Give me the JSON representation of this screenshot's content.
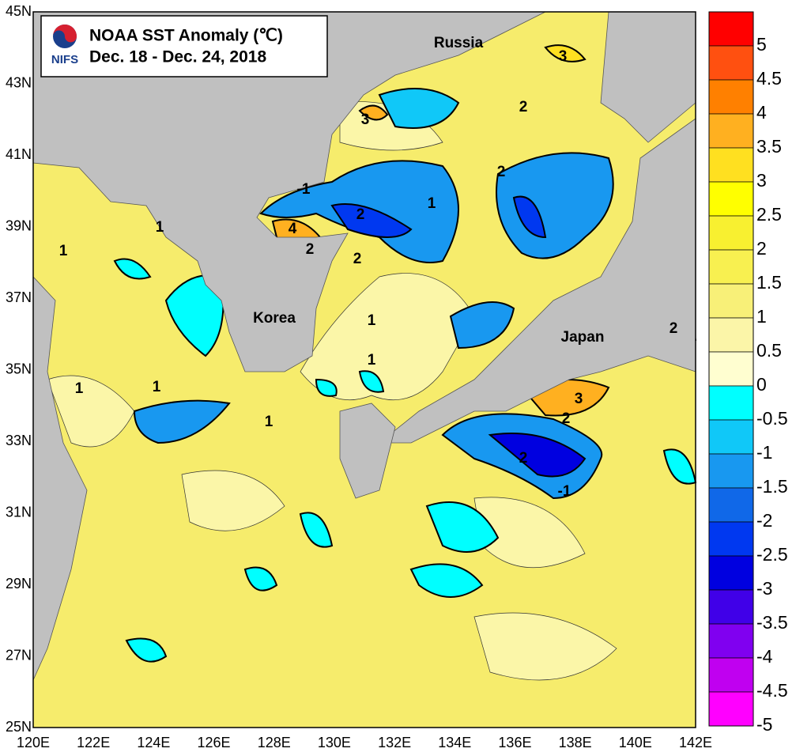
{
  "title": {
    "line1": "NOAA SST Anomaly (℃)",
    "line2": "Dec. 18 - Dec. 24, 2018",
    "logo": "NIFS"
  },
  "labels": {
    "russia": "Russia",
    "korea": "Korea",
    "japan": "Japan"
  },
  "lon_labels": [
    "120E",
    "122E",
    "124E",
    "126E",
    "128E",
    "130E",
    "132E",
    "134E",
    "136E",
    "138E",
    "140E",
    "142E"
  ],
  "lat_labels": [
    "45N",
    "43N",
    "41N",
    "39N",
    "37N",
    "35N",
    "33N",
    "31N",
    "29N",
    "27N",
    "25N"
  ],
  "contour_labels": [
    "3",
    "3",
    "2",
    "2",
    "-1",
    "2",
    "1",
    "4",
    "2",
    "2",
    "1",
    "1",
    "1",
    "1",
    "1",
    "1",
    "1",
    "2",
    "3",
    "2",
    "2",
    "-1"
  ],
  "colorbar": {
    "levels": [
      5,
      4.5,
      4,
      3.5,
      3,
      2.5,
      2,
      1.5,
      1,
      0.5,
      0,
      -0.5,
      -1,
      -1.5,
      -2,
      -2.5,
      -3,
      -3.5,
      -4,
      -4.5,
      -5
    ],
    "colors": [
      "#ff0000",
      "#ff5010",
      "#ff8000",
      "#ffb020",
      "#ffe020",
      "#ffff00",
      "#f8f030",
      "#f8f050",
      "#f8f078",
      "#fbf5a8",
      "#fffed0",
      "#00ffff",
      "#10c8f8",
      "#1898f0",
      "#1068e8",
      "#0038f0",
      "#0000e0",
      "#4000e8",
      "#8000f0",
      "#c000f0",
      "#ff00ff"
    ]
  }
}
